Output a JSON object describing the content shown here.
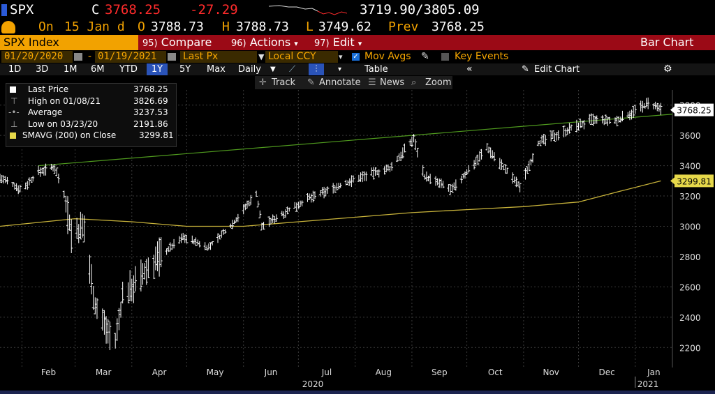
{
  "header": {
    "ticker": "SPX",
    "price_code": "C",
    "last": "3768.25",
    "change": "-27.29",
    "range": "3719.90/3805.09"
  },
  "quote": {
    "on": "On",
    "date": "15 Jan d",
    "open_label": "O",
    "open": "3788.73",
    "high_label": "H",
    "high": "3788.73",
    "low_label": "L",
    "low": "3749.62",
    "prev_label": "Prev",
    "prev": "3768.25"
  },
  "menu": {
    "security": "SPX Index",
    "compare_num": "95)",
    "compare": "Compare",
    "actions_num": "96)",
    "actions": "Actions",
    "edit_num": "97)",
    "edit": "Edit",
    "chart_type": "Bar Chart"
  },
  "controls": {
    "start_date": "01/20/2020",
    "end_date": "01/19/2021",
    "field": "Last Px",
    "currency": "Local CCY",
    "mov_avgs": "Mov Avgs",
    "key_events": "Key Events"
  },
  "periods": [
    "1D",
    "3D",
    "1M",
    "6M",
    "YTD",
    "1Y",
    "5Y",
    "Max"
  ],
  "active_period": "1Y",
  "freq": "Daily",
  "table_label": "Table",
  "edit_chart": "Edit Chart",
  "tools": {
    "track": "Track",
    "annotate": "Annotate",
    "news": "News",
    "zoom": "Zoom"
  },
  "legend": [
    {
      "label": "Last Price",
      "value": "3768.25"
    },
    {
      "label": "High on 01/08/21",
      "value": "3826.69"
    },
    {
      "label": "Average",
      "value": "3237.53"
    },
    {
      "label": "Low on 03/23/20",
      "value": "2191.86"
    },
    {
      "label": "SMAVG (200)  on Close",
      "value": "3299.81"
    }
  ],
  "colors": {
    "accent": "#f2a200",
    "menu_red": "#9b0a16",
    "change_red": "#ff2b2b",
    "price_bars": "#ffffff",
    "sma_line": "#c7b23a",
    "trend_line": "#4f9a1e",
    "active_period_bg": "#2a53b8"
  },
  "chart_data": {
    "type": "bar",
    "title": "SPX Index",
    "ylim": [
      2100,
      3900
    ],
    "yticks": [
      2200,
      2400,
      2600,
      2800,
      3000,
      3200,
      3400,
      3600,
      3800
    ],
    "months": [
      "Feb",
      "Mar",
      "Apr",
      "May",
      "Jun",
      "Jul",
      "Aug",
      "Sep",
      "Oct",
      "Nov",
      "Dec",
      "Jan"
    ],
    "year_labels": [
      "2020",
      "2021"
    ],
    "price_tag": "3768.25",
    "sma_tag": "3299.81",
    "series": [
      {
        "name": "Last Price",
        "x": [
          "01/20/20",
          "02/01/20",
          "02/10/20",
          "02/19/20",
          "02/24/20",
          "02/28/20",
          "03/06/20",
          "03/12/20",
          "03/16/20",
          "03/23/20",
          "03/27/20",
          "04/06/20",
          "04/15/20",
          "04/29/20",
          "05/13/20",
          "05/27/20",
          "06/08/20",
          "06/11/20",
          "06/22/20",
          "07/06/20",
          "07/22/20",
          "08/05/20",
          "08/20/20",
          "09/02/20",
          "09/08/20",
          "09/23/20",
          "10/12/20",
          "10/30/20",
          "11/09/20",
          "11/24/20",
          "12/08/20",
          "12/21/20",
          "01/08/21",
          "01/15/21"
        ],
        "values": [
          3320,
          3240,
          3360,
          3390,
          3220,
          2950,
          2980,
          2480,
          2380,
          2230,
          2540,
          2660,
          2790,
          2930,
          2860,
          3030,
          3220,
          3000,
          3080,
          3180,
          3260,
          3330,
          3380,
          3580,
          3330,
          3240,
          3520,
          3260,
          3550,
          3630,
          3700,
          3690,
          3810,
          3768.25
        ]
      },
      {
        "name": "SMAVG (200)",
        "x": [
          "01/20/20",
          "03/01/20",
          "04/01/20",
          "05/01/20",
          "06/01/20",
          "07/01/20",
          "08/01/20",
          "09/01/20",
          "10/01/20",
          "11/01/20",
          "12/01/20",
          "12/20/20",
          "01/15/21"
        ],
        "values": [
          3000,
          3050,
          3030,
          3000,
          3000,
          3030,
          3060,
          3090,
          3110,
          3130,
          3160,
          3220,
          3299.81
        ]
      }
    ]
  }
}
